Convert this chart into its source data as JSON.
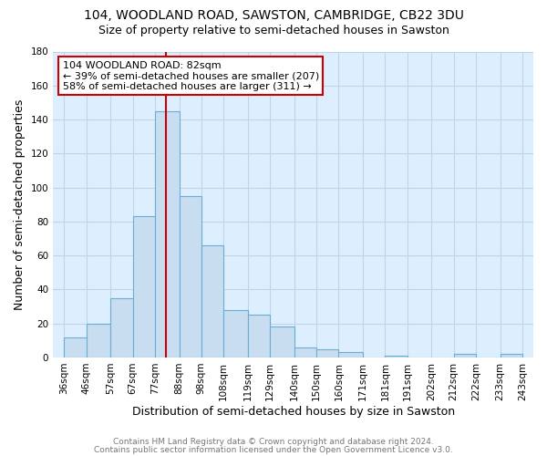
{
  "title": "104, WOODLAND ROAD, SAWSTON, CAMBRIDGE, CB22 3DU",
  "subtitle": "Size of property relative to semi-detached houses in Sawston",
  "xlabel": "Distribution of semi-detached houses by size in Sawston",
  "ylabel": "Number of semi-detached properties",
  "bar_color": "#c9ddf0",
  "bar_edge_color": "#6aaed6",
  "bins": [
    36,
    46,
    57,
    67,
    77,
    88,
    98,
    108,
    119,
    129,
    140,
    150,
    160,
    171,
    181,
    191,
    202,
    212,
    222,
    233,
    243
  ],
  "counts": [
    12,
    20,
    35,
    83,
    145,
    95,
    66,
    28,
    25,
    18,
    6,
    5,
    3,
    0,
    1,
    0,
    0,
    2,
    0,
    2
  ],
  "tick_labels": [
    "36sqm",
    "46sqm",
    "57sqm",
    "67sqm",
    "77sqm",
    "88sqm",
    "98sqm",
    "108sqm",
    "119sqm",
    "129sqm",
    "140sqm",
    "150sqm",
    "160sqm",
    "171sqm",
    "181sqm",
    "191sqm",
    "202sqm",
    "212sqm",
    "222sqm",
    "233sqm",
    "243sqm"
  ],
  "property_size": 82,
  "vline_color": "#cc0000",
  "annotation_line1": "104 WOODLAND ROAD: 82sqm",
  "annotation_line2": "← 39% of semi-detached houses are smaller (207)",
  "annotation_line3": "58% of semi-detached houses are larger (311) →",
  "annotation_box_edgecolor": "#cc0000",
  "annotation_box_facecolor": "#ffffff",
  "ylim": [
    0,
    180
  ],
  "yticks": [
    0,
    20,
    40,
    60,
    80,
    100,
    120,
    140,
    160,
    180
  ],
  "footer_line1": "Contains HM Land Registry data © Crown copyright and database right 2024.",
  "footer_line2": "Contains public sector information licensed under the Open Government Licence v3.0.",
  "bg_color": "#ffffff",
  "plot_bg_color": "#ddeeff",
  "grid_color": "#c0d4e8",
  "title_fontsize": 10,
  "subtitle_fontsize": 9,
  "axis_label_fontsize": 9,
  "tick_label_fontsize": 7.5,
  "annotation_fontsize": 8,
  "footer_fontsize": 6.5
}
